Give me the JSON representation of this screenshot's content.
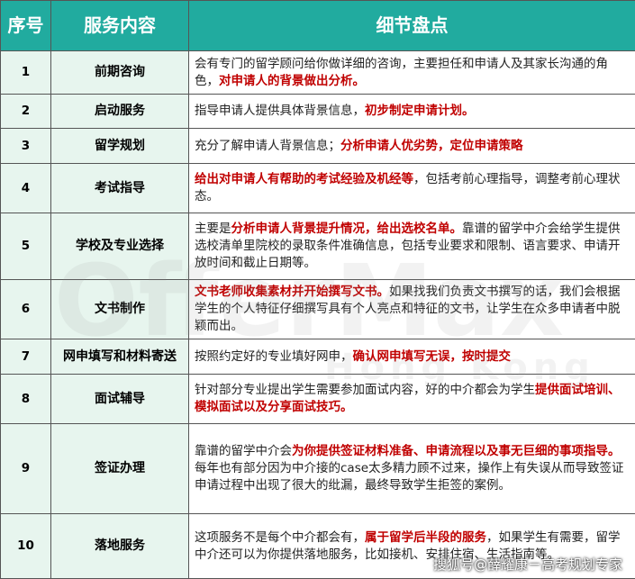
{
  "table": {
    "headers": [
      "序号",
      "服务内容",
      "细节盘点"
    ],
    "rows": [
      {
        "no": "1",
        "service": "前期咨询",
        "detail": [
          [
            {
              "text": "会有专门的留学顾问给你做详细的咨询，主要担任和申请人及其家长沟通的角色，",
              "highlight": false
            },
            {
              "text": "对申请人的背景做出分析。",
              "highlight": true
            }
          ]
        ]
      },
      {
        "no": "2",
        "service": "启动服务",
        "detail": [
          [
            {
              "text": "指导申请人提供具体背景信息，",
              "highlight": false
            },
            {
              "text": "初步制定申请计划。",
              "highlight": true
            }
          ]
        ]
      },
      {
        "no": "3",
        "service": "留学规划",
        "detail": [
          [
            {
              "text": "充分了解申请人背景信息；",
              "highlight": false
            },
            {
              "text": "分析申请人优劣势，定位申请策略",
              "highlight": true
            }
          ]
        ]
      },
      {
        "no": "4",
        "service": "考试指导",
        "detail": [
          [
            {
              "text": "给出对申请人有帮助的考试经验及机经等",
              "highlight": true
            },
            {
              "text": "，包括考前心理指导，调整考前心理状态。",
              "highlight": false
            }
          ]
        ]
      },
      {
        "no": "5",
        "service": "学校及专业选择",
        "detail": [
          [
            {
              "text": "主要是",
              "highlight": false
            },
            {
              "text": "分析申请人背景提升情况，给出选校名单。",
              "highlight": true
            },
            {
              "text": "靠谱的留学中介会给学生提供选校清单里院校的录取条件准确信息，包括专业要求和限制、语言要求、申请开放时间和截止日期等。",
              "highlight": false
            }
          ]
        ]
      },
      {
        "no": "6",
        "service": "文书制作",
        "detail": [
          [
            {
              "text": "文书老师收集素材并开始撰写文书。",
              "highlight": true
            },
            {
              "text": "如果找我们负责文书撰写的话，我们会根据学生的个人特征仔细撰写具有个人亮点和特征的文书，让学生在众多申请者中脱颖而出。",
              "highlight": false
            }
          ]
        ]
      },
      {
        "no": "7",
        "service": "网申填写和材料寄送",
        "detail": [
          [
            {
              "text": "按照约定好的专业填好网申，",
              "highlight": false
            },
            {
              "text": "确认网申填写无误，按时提交",
              "highlight": true
            }
          ]
        ]
      },
      {
        "no": "8",
        "service": "面试辅导",
        "detail": [
          [
            {
              "text": "针对部分专业提出学生需要参加面试内容，好的中介都会为学生",
              "highlight": false
            },
            {
              "text": "提供面试培训、模拟面试以及分享面试技巧。",
              "highlight": true
            }
          ]
        ]
      },
      {
        "no": "9",
        "service": "签证办理",
        "detail": [
          [
            {
              "text": "靠谱的留学中介会",
              "highlight": false
            },
            {
              "text": "为你提供签证材料准备、申请流程以及事无巨细的事项指导。",
              "highlight": true
            }
          ],
          [
            {
              "text": "每年也有部分因为中介接的case太多精力顾不过来，操作上有失误从而导致签证申请过程中出现了很大的纰漏，最终导致学生拒签的案例。",
              "highlight": false
            }
          ]
        ]
      },
      {
        "no": "10",
        "service": "落地服务",
        "detail": [
          [
            {
              "text": "这项服务不是每个中介都会有，",
              "highlight": false
            },
            {
              "text": "属于留学后半段的服务",
              "highlight": true
            },
            {
              "text": "，如果学生有需要，留学中介还可以为你提供落地服务，比如接机、安排住宿、生活指南等。",
              "highlight": false
            }
          ]
        ]
      }
    ]
  },
  "watermark": {
    "brand": "OfferMax",
    "region": "Hong Kong"
  },
  "credit": "搜狐号@薛耀康－高考规划专家"
}
